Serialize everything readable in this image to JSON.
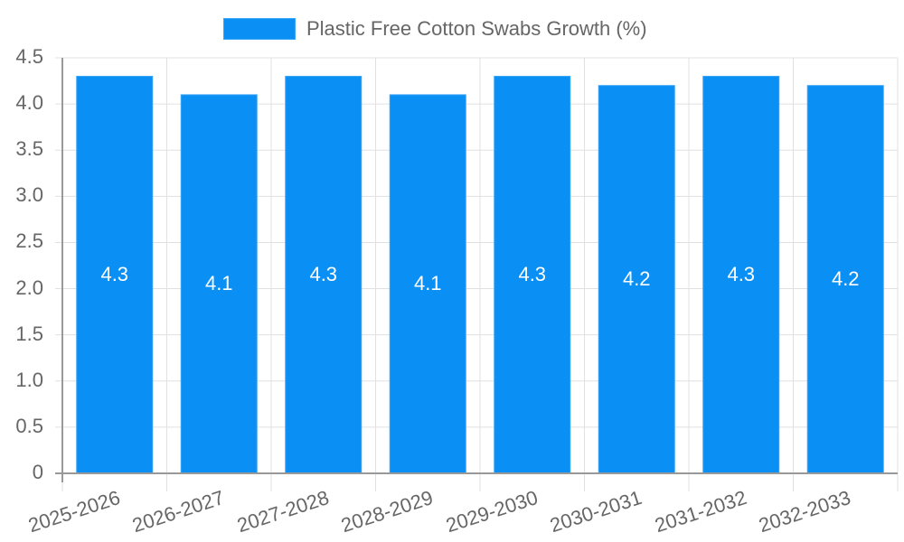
{
  "chart_data": {
    "type": "bar",
    "title": "",
    "legend": [
      "Plastic Free Cotton Swabs Growth (%)"
    ],
    "legend_position": "top",
    "categories": [
      "2025-2026",
      "2026-2027",
      "2027-2028",
      "2028-2029",
      "2029-2030",
      "2030-2031",
      "2031-2032",
      "2032-2033"
    ],
    "series": [
      {
        "name": "Plastic Free Cotton Swabs Growth (%)",
        "values": [
          4.3,
          4.1,
          4.3,
          4.1,
          4.3,
          4.2,
          4.3,
          4.2
        ],
        "color": "#0a8ff5"
      }
    ],
    "data_labels": [
      "4.3",
      "4.1",
      "4.3",
      "4.1",
      "4.3",
      "4.2",
      "4.3",
      "4.2"
    ],
    "xlabel": "",
    "ylabel": "",
    "ylim": [
      0,
      4.5
    ],
    "yticks": [
      "0",
      "0.5",
      "1.0",
      "1.5",
      "2.0",
      "2.5",
      "3.0",
      "3.5",
      "4.0",
      "4.5"
    ],
    "grid": true
  },
  "legend": {
    "label": "Plastic Free Cotton Swabs Growth (%)"
  }
}
